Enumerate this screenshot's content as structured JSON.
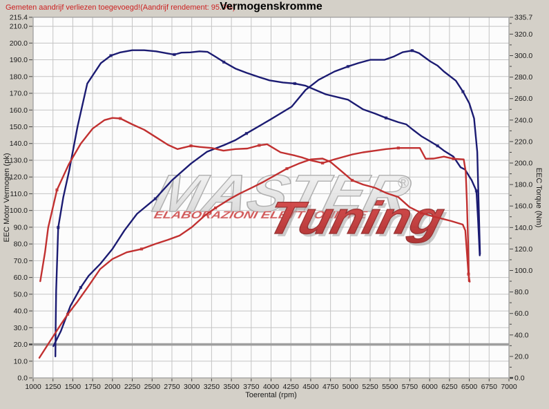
{
  "header": {
    "note": "Gemeten aandrijf verliezen toegevoegd!(Aandrijf rendement: 95.0%)",
    "title": "Vermogenskromme"
  },
  "watermark": {
    "master": "MASTER",
    "sub": "ELABORAZIONI ELETTRONICHE",
    "tuning": "Tuning",
    "reg": "®"
  },
  "colors": {
    "background": "#d4d0c8",
    "plot_background": "#fcfcfc",
    "grid": "#c3c3c3",
    "plot_border": "#9a9a9a",
    "tick_text": "#1a1a1a",
    "note_text": "#cc2222",
    "reference_line": "#9e9e9e",
    "curve_tuned": "#1b1b72",
    "curve_stock": "#c13030",
    "watermark_gray": "#b5b5b5",
    "watermark_red": "#c83232"
  },
  "chart_data": {
    "type": "line",
    "title": "Vermogenskromme",
    "grid": true,
    "x_axis": {
      "label": "Toerental (rpm)",
      "min": 1000,
      "max": 7000,
      "tick_step": 250
    },
    "y_left": {
      "label": "EEC Motor Vermogen (pk)",
      "min": 0,
      "max": 215.4,
      "label_step": 10,
      "top_tick": 215.4
    },
    "y_right": {
      "label": "EEC Torque (Nm)",
      "min": 0,
      "max": 335.7,
      "label_step": 20,
      "minor_step": 10,
      "top_tick": 335.7
    },
    "reference_line": {
      "axis": "left",
      "value": 20
    },
    "series": [
      {
        "name": "vermogen-tuned",
        "unit": "pk",
        "axis": "left",
        "color": "#1b1b72",
        "points": [
          [
            1255,
            19
          ],
          [
            1350,
            28
          ],
          [
            1470,
            43
          ],
          [
            1600,
            54
          ],
          [
            1700,
            61
          ],
          [
            1845,
            68
          ],
          [
            2000,
            77
          ],
          [
            2150,
            88
          ],
          [
            2310,
            98
          ],
          [
            2540,
            107
          ],
          [
            2750,
            118
          ],
          [
            2990,
            128
          ],
          [
            3190,
            135
          ],
          [
            3405,
            139
          ],
          [
            3550,
            142
          ],
          [
            3690,
            146
          ],
          [
            3980,
            154
          ],
          [
            4260,
            162
          ],
          [
            4435,
            172
          ],
          [
            4600,
            178
          ],
          [
            4800,
            183
          ],
          [
            4970,
            186
          ],
          [
            5100,
            188
          ],
          [
            5250,
            190
          ],
          [
            5430,
            190
          ],
          [
            5550,
            192
          ],
          [
            5660,
            194.5
          ],
          [
            5780,
            195.5
          ],
          [
            5865,
            194
          ],
          [
            6010,
            189
          ],
          [
            6100,
            186.5
          ],
          [
            6180,
            183
          ],
          [
            6330,
            177.5
          ],
          [
            6420,
            171
          ],
          [
            6500,
            164
          ],
          [
            6560,
            155
          ],
          [
            6600,
            135
          ],
          [
            6620,
            100
          ],
          [
            6635,
            74
          ]
        ]
      },
      {
        "name": "koppel-tuned",
        "unit": "Nm",
        "axis": "right",
        "color": "#1b1b72",
        "points": [
          [
            1280,
            20
          ],
          [
            1284,
            47
          ],
          [
            1290,
            81
          ],
          [
            1316,
            140
          ],
          [
            1380,
            168
          ],
          [
            1455,
            193
          ],
          [
            1560,
            234
          ],
          [
            1683,
            274
          ],
          [
            1853,
            293
          ],
          [
            1980,
            300
          ],
          [
            2100,
            303
          ],
          [
            2250,
            305
          ],
          [
            2400,
            305
          ],
          [
            2550,
            304
          ],
          [
            2700,
            302
          ],
          [
            2780,
            301
          ],
          [
            2870,
            302.8
          ],
          [
            2980,
            303
          ],
          [
            3100,
            304
          ],
          [
            3200,
            303.5
          ],
          [
            3300,
            299
          ],
          [
            3405,
            294
          ],
          [
            3550,
            288
          ],
          [
            3690,
            284
          ],
          [
            3850,
            280
          ],
          [
            3980,
            277
          ],
          [
            4150,
            275
          ],
          [
            4300,
            274
          ],
          [
            4435,
            272
          ],
          [
            4690,
            264
          ],
          [
            4970,
            259
          ],
          [
            5160,
            250
          ],
          [
            5314,
            246
          ],
          [
            5450,
            242
          ],
          [
            5605,
            238
          ],
          [
            5705,
            236
          ],
          [
            5780,
            231.5
          ],
          [
            5895,
            225
          ],
          [
            6010,
            220
          ],
          [
            6100,
            216
          ],
          [
            6180,
            211.5
          ],
          [
            6300,
            206
          ],
          [
            6390,
            196
          ],
          [
            6445,
            194
          ],
          [
            6530,
            184
          ],
          [
            6590,
            174
          ],
          [
            6610,
            148
          ],
          [
            6625,
            125
          ],
          [
            6632,
            114
          ]
        ]
      },
      {
        "name": "koppel-stock",
        "unit": "Nm",
        "axis": "right",
        "color": "#c13030",
        "points": [
          [
            1090,
            90
          ],
          [
            1150,
            117
          ],
          [
            1190,
            140
          ],
          [
            1300,
            175
          ],
          [
            1450,
            199
          ],
          [
            1600,
            218
          ],
          [
            1750,
            232
          ],
          [
            1900,
            240
          ],
          [
            2000,
            242
          ],
          [
            2100,
            241.5
          ],
          [
            2250,
            236
          ],
          [
            2400,
            231
          ],
          [
            2550,
            224
          ],
          [
            2700,
            217
          ],
          [
            2820,
            213
          ],
          [
            2990,
            216
          ],
          [
            3100,
            215
          ],
          [
            3250,
            214
          ],
          [
            3400,
            211.5
          ],
          [
            3550,
            213
          ],
          [
            3700,
            213.5
          ],
          [
            3850,
            216.5
          ],
          [
            3950,
            217.5
          ],
          [
            4120,
            210
          ],
          [
            4300,
            207
          ],
          [
            4400,
            205
          ],
          [
            4500,
            202.5
          ],
          [
            4650,
            200
          ],
          [
            4800,
            203.5
          ],
          [
            5023,
            208
          ],
          [
            5160,
            210
          ],
          [
            5314,
            211.5
          ],
          [
            5450,
            213
          ],
          [
            5605,
            214
          ],
          [
            5750,
            214
          ],
          [
            5877,
            214
          ],
          [
            5950,
            204
          ],
          [
            6050,
            204.2
          ],
          [
            6180,
            206
          ],
          [
            6300,
            204
          ],
          [
            6430,
            203.4
          ],
          [
            6455,
            192
          ],
          [
            6470,
            164
          ],
          [
            6485,
            125
          ],
          [
            6495,
            90
          ]
        ]
      },
      {
        "name": "vermogen-stock",
        "unit": "pk",
        "axis": "left",
        "color": "#c13030",
        "points": [
          [
            1078,
            12
          ],
          [
            1200,
            21
          ],
          [
            1350,
            32
          ],
          [
            1436,
            38
          ],
          [
            1550,
            45
          ],
          [
            1700,
            55
          ],
          [
            1845,
            65
          ],
          [
            2000,
            71
          ],
          [
            2180,
            75
          ],
          [
            2367,
            77
          ],
          [
            2540,
            80
          ],
          [
            2700,
            82.5
          ],
          [
            2846,
            85
          ],
          [
            3000,
            90
          ],
          [
            3166,
            97
          ],
          [
            3300,
            101.5
          ],
          [
            3485,
            107
          ],
          [
            3600,
            110
          ],
          [
            3775,
            114
          ],
          [
            3900,
            117
          ],
          [
            4050,
            121
          ],
          [
            4200,
            125
          ],
          [
            4350,
            128
          ],
          [
            4500,
            130.5
          ],
          [
            4650,
            131
          ],
          [
            4750,
            129
          ],
          [
            4850,
            125
          ],
          [
            5023,
            118
          ],
          [
            5160,
            115.5
          ],
          [
            5314,
            113.5
          ],
          [
            5450,
            110.5
          ],
          [
            5605,
            108
          ],
          [
            5747,
            102
          ],
          [
            5895,
            98.5
          ],
          [
            6040,
            96.5
          ],
          [
            6270,
            93.7
          ],
          [
            6417,
            91.6
          ],
          [
            6450,
            88
          ],
          [
            6470,
            75
          ],
          [
            6490,
            62
          ],
          [
            6505,
            57.5
          ]
        ]
      }
    ]
  }
}
